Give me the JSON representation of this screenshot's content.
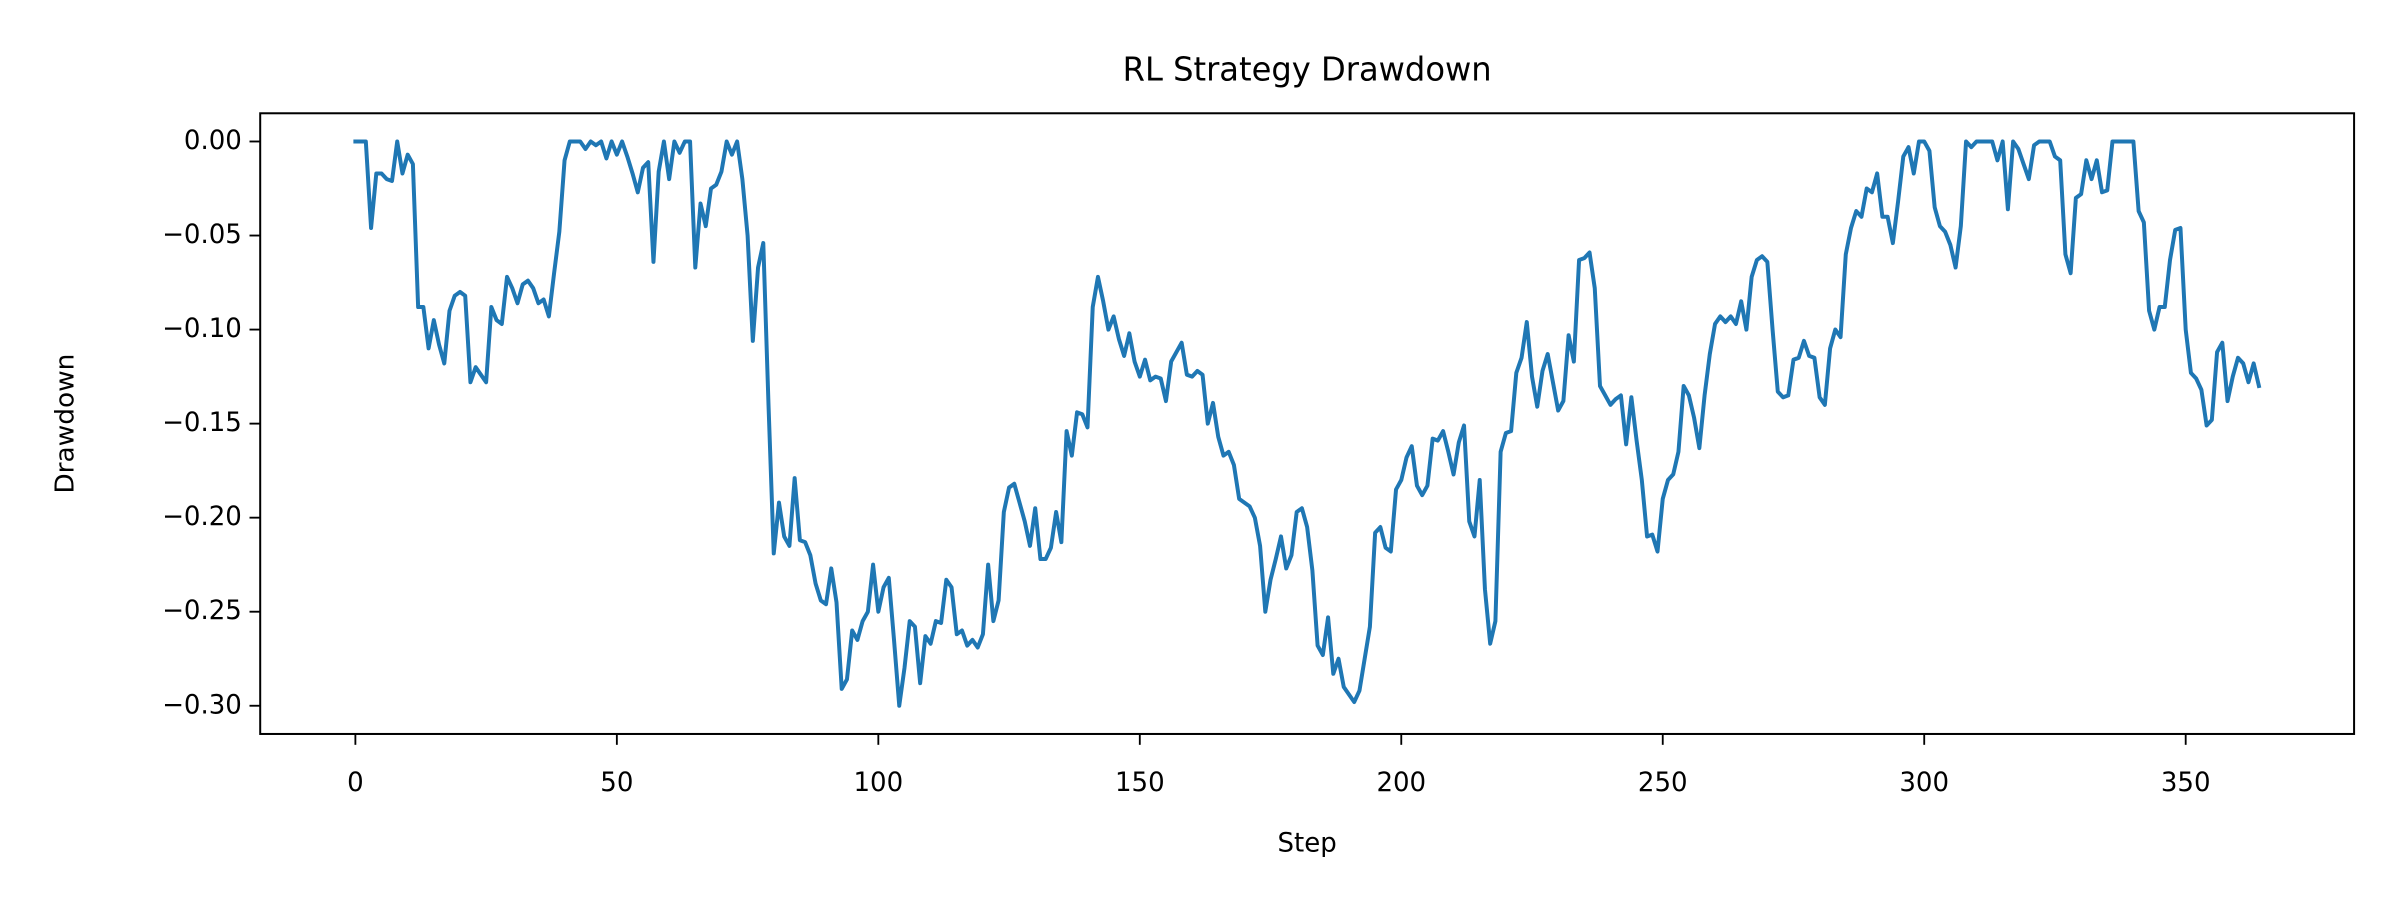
{
  "chart_data": {
    "type": "line",
    "title": "RL Strategy Drawdown",
    "xlabel": "Step",
    "ylabel": "Drawdown",
    "xlim": [
      -18.2,
      382.2
    ],
    "xticks": [
      0,
      50,
      100,
      150,
      200,
      250,
      300,
      350
    ],
    "ylim": [
      -0.315,
      0.015
    ],
    "yticks": [
      {
        "value": 0,
        "label": "0.00"
      },
      {
        "value": -0.05,
        "label": "−0.05"
      },
      {
        "value": -0.1,
        "label": "−0.10"
      },
      {
        "value": -0.15,
        "label": "−0.15"
      },
      {
        "value": -0.2,
        "label": "−0.20"
      },
      {
        "value": -0.25,
        "label": "−0.25"
      },
      {
        "value": -0.3,
        "label": "−0.30"
      }
    ],
    "grid": false,
    "series": [
      {
        "color": "#1f77b4",
        "values": [
          0,
          0,
          0,
          -0.046,
          -0.017,
          -0.017,
          -0.02,
          -0.021,
          0,
          -0.017,
          -0.007,
          -0.012,
          -0.088,
          -0.088,
          -0.11,
          -0.095,
          -0.108,
          -0.118,
          -0.09,
          -0.082,
          -0.08,
          -0.082,
          -0.128,
          -0.12,
          -0.124,
          -0.128,
          -0.088,
          -0.095,
          -0.097,
          -0.072,
          -0.078,
          -0.086,
          -0.076,
          -0.074,
          -0.078,
          -0.086,
          -0.084,
          -0.093,
          -0.07,
          -0.048,
          -0.01,
          0,
          0,
          0,
          -0.004,
          0,
          -0.002,
          0,
          -0.009,
          0,
          -0.007,
          0,
          -0.008,
          -0.017,
          -0.027,
          -0.014,
          -0.011,
          -0.064,
          -0.016,
          0,
          -0.02,
          0,
          -0.006,
          0,
          0,
          -0.067,
          -0.033,
          -0.045,
          -0.025,
          -0.023,
          -0.016,
          0,
          -0.007,
          0,
          -0.02,
          -0.05,
          -0.106,
          -0.067,
          -0.054,
          -0.14,
          -0.219,
          -0.192,
          -0.21,
          -0.215,
          -0.179,
          -0.212,
          -0.213,
          -0.22,
          -0.235,
          -0.244,
          -0.246,
          -0.227,
          -0.245,
          -0.291,
          -0.286,
          -0.26,
          -0.265,
          -0.255,
          -0.25,
          -0.225,
          -0.25,
          -0.237,
          -0.232,
          -0.265,
          -0.3,
          -0.28,
          -0.255,
          -0.258,
          -0.288,
          -0.263,
          -0.267,
          -0.255,
          -0.256,
          -0.233,
          -0.237,
          -0.262,
          -0.26,
          -0.268,
          -0.265,
          -0.269,
          -0.262,
          -0.225,
          -0.255,
          -0.244,
          -0.197,
          -0.184,
          -0.182,
          -0.192,
          -0.202,
          -0.215,
          -0.195,
          -0.222,
          -0.222,
          -0.216,
          -0.197,
          -0.213,
          -0.154,
          -0.167,
          -0.144,
          -0.145,
          -0.152,
          -0.088,
          -0.072,
          -0.085,
          -0.1,
          -0.093,
          -0.105,
          -0.114,
          -0.102,
          -0.117,
          -0.125,
          -0.116,
          -0.127,
          -0.125,
          -0.126,
          -0.138,
          -0.117,
          -0.112,
          -0.107,
          -0.124,
          -0.125,
          -0.122,
          -0.124,
          -0.15,
          -0.139,
          -0.157,
          -0.167,
          -0.165,
          -0.172,
          -0.19,
          -0.192,
          -0.194,
          -0.2,
          -0.215,
          -0.25,
          -0.233,
          -0.222,
          -0.21,
          -0.227,
          -0.22,
          -0.197,
          -0.195,
          -0.205,
          -0.228,
          -0.268,
          -0.273,
          -0.253,
          -0.283,
          -0.275,
          -0.29,
          -0.294,
          -0.298,
          -0.292,
          -0.275,
          -0.258,
          -0.208,
          -0.205,
          -0.216,
          -0.218,
          -0.185,
          -0.18,
          -0.168,
          -0.162,
          -0.183,
          -0.188,
          -0.183,
          -0.158,
          -0.159,
          -0.154,
          -0.165,
          -0.177,
          -0.16,
          -0.151,
          -0.202,
          -0.21,
          -0.18,
          -0.238,
          -0.267,
          -0.255,
          -0.165,
          -0.155,
          -0.154,
          -0.123,
          -0.115,
          -0.096,
          -0.125,
          -0.141,
          -0.122,
          -0.113,
          -0.128,
          -0.143,
          -0.138,
          -0.103,
          -0.117,
          -0.063,
          -0.062,
          -0.059,
          -0.078,
          -0.13,
          -0.135,
          -0.14,
          -0.137,
          -0.135,
          -0.161,
          -0.136,
          -0.159,
          -0.18,
          -0.21,
          -0.209,
          -0.218,
          -0.19,
          -0.18,
          -0.177,
          -0.165,
          -0.13,
          -0.135,
          -0.147,
          -0.163,
          -0.135,
          -0.113,
          -0.097,
          -0.093,
          -0.096,
          -0.093,
          -0.097,
          -0.085,
          -0.1,
          -0.072,
          -0.063,
          -0.061,
          -0.064,
          -0.1,
          -0.133,
          -0.136,
          -0.135,
          -0.116,
          -0.115,
          -0.106,
          -0.114,
          -0.115,
          -0.136,
          -0.14,
          -0.11,
          -0.1,
          -0.104,
          -0.06,
          -0.046,
          -0.037,
          -0.04,
          -0.025,
          -0.027,
          -0.017,
          -0.04,
          -0.04,
          -0.054,
          -0.032,
          -0.008,
          -0.003,
          -0.017,
          0,
          0,
          -0.005,
          -0.035,
          -0.045,
          -0.048,
          -0.055,
          -0.067,
          -0.045,
          0,
          -0.003,
          0,
          0,
          0,
          0,
          -0.01,
          0,
          -0.036,
          0,
          -0.004,
          -0.012,
          -0.02,
          -0.002,
          0,
          0,
          0,
          -0.008,
          -0.01,
          -0.06,
          -0.07,
          -0.03,
          -0.028,
          -0.01,
          -0.02,
          -0.01,
          -0.027,
          -0.026,
          0,
          0,
          0,
          0,
          0,
          -0.037,
          -0.043,
          -0.09,
          -0.1,
          -0.088,
          -0.088,
          -0.063,
          -0.047,
          -0.046,
          -0.1,
          -0.123,
          -0.126,
          -0.132,
          -0.151,
          -0.148,
          -0.112,
          -0.107,
          -0.138,
          -0.125,
          -0.115,
          -0.118,
          -0.128,
          -0.118,
          -0.13
        ]
      }
    ]
  }
}
